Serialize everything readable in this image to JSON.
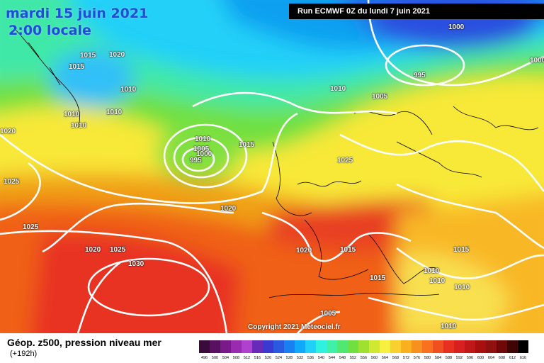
{
  "header": {
    "date": "mardi 15 juin 2021",
    "time": "2:00 locale",
    "run": "Run ECMWF 0Z du lundi 7 juin 2021"
  },
  "pressure_labels": [
    "1015",
    "1020",
    "1015",
    "1010",
    "1010",
    "1010",
    "1010",
    "1020",
    "1025",
    "1025",
    "1010",
    "1005",
    "1000",
    "995",
    "1015",
    "1020",
    "1020",
    "1025",
    "1030",
    "1010",
    "1000",
    "995",
    "1005",
    "1000",
    "1025",
    "1020",
    "1015",
    "1015",
    "1015",
    "1010",
    "1010",
    "1010",
    "1005",
    "1010"
  ],
  "copyright": "Copyright 2021 Meteociel.fr",
  "footer": {
    "title": "Géop. z500, pression niveau mer",
    "subtitle": "(+192h)"
  },
  "colorscale": {
    "labels": [
      "496",
      "500",
      "504",
      "508",
      "512",
      "516",
      "520",
      "524",
      "528",
      "532",
      "536",
      "540",
      "544",
      "548",
      "552",
      "556",
      "560",
      "564",
      "568",
      "572",
      "576",
      "580",
      "584",
      "588",
      "592",
      "596",
      "600",
      "604",
      "608",
      "612",
      "616"
    ],
    "colors": [
      "#3a0a3a",
      "#5a1060",
      "#7a1a8a",
      "#9a2ab0",
      "#b040d0",
      "#6a2ab8",
      "#3a3ad0",
      "#2a5ae0",
      "#1a80f0",
      "#10a8f8",
      "#20d0f8",
      "#30f0e0",
      "#40f0a8",
      "#50e870",
      "#70e040",
      "#a0e030",
      "#d0e830",
      "#f8f040",
      "#f8d030",
      "#f8b020",
      "#f89020",
      "#f87020",
      "#f05020",
      "#e83020",
      "#d82020",
      "#c01818",
      "#a81010",
      "#901010",
      "#700808",
      "#400404",
      "#000000"
    ]
  },
  "colors": {
    "title": "#1a4fd6",
    "isobar": "#ffffff"
  }
}
